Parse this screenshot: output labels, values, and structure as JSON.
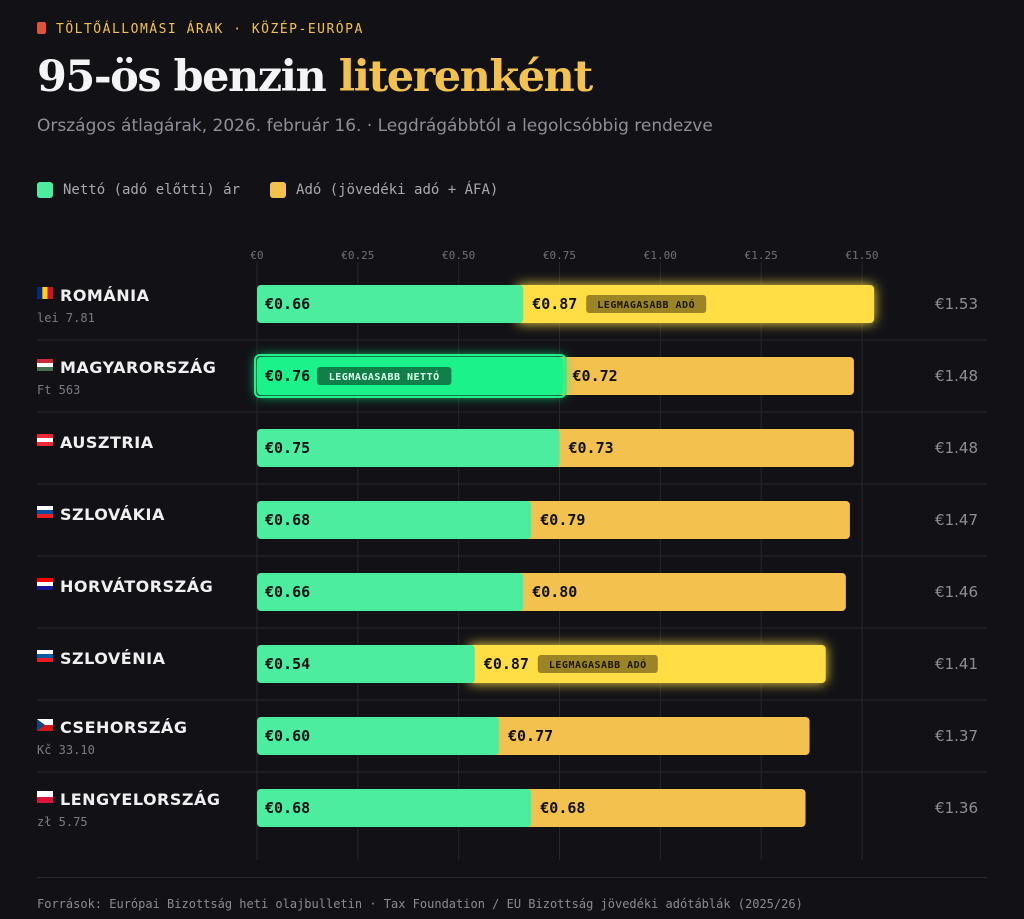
{
  "header": {
    "kicker": "TÖLTŐÁLLOMÁSI ÁRAK · KÖZÉP-EURÓPA",
    "title_main": "95-ös benzin",
    "title_accent": "literenként",
    "subtitle": "Országos átlagárak, 2026. február 16. · Legdrágábbtól a legolcsóbbig rendezve"
  },
  "legend": [
    {
      "label": "Nettó (adó előtti) ár",
      "color": "#4ded9f"
    },
    {
      "label": "Adó (jövedéki adó + ÁFA)",
      "color": "#f2c14e"
    }
  ],
  "colors": {
    "net": "#4ded9f",
    "tax": "#f2c14e",
    "net_highlight": "#1ff28a",
    "tax_highlight": "#ffde45"
  },
  "chart_data": {
    "type": "bar",
    "orientation": "horizontal",
    "stacked": true,
    "xlim": [
      0,
      1.5
    ],
    "tick_labels": [
      "€0",
      "€0.25",
      "€0.50",
      "€0.75",
      "€1.00",
      "€1.25",
      "€1.50"
    ],
    "tick_values": [
      0,
      0.25,
      0.5,
      0.75,
      1.0,
      1.25,
      1.5
    ],
    "grid": true,
    "legend_position": "top-left",
    "rows": [
      {
        "country": "ROMÁNIA",
        "local": "lei 7.81",
        "flag": "romania-flag-icon",
        "net": 0.66,
        "tax": 0.87,
        "total": 1.53,
        "net_label": "€0.66",
        "tax_label": "€0.87",
        "total_label": "€1.53",
        "badge": "LEGMAGASABB ADÓ",
        "badge_on": "tax"
      },
      {
        "country": "MAGYARORSZÁG",
        "local": "Ft 563",
        "flag": "hungary-flag-icon",
        "net": 0.76,
        "tax": 0.72,
        "total": 1.48,
        "net_label": "€0.76",
        "tax_label": "€0.72",
        "total_label": "€1.48",
        "badge": "LEGMAGASABB NETTÓ",
        "badge_on": "net"
      },
      {
        "country": "AUSZTRIA",
        "local": "",
        "flag": "austria-flag-icon",
        "net": 0.75,
        "tax": 0.73,
        "total": 1.48,
        "net_label": "€0.75",
        "tax_label": "€0.73",
        "total_label": "€1.48",
        "badge": "",
        "badge_on": ""
      },
      {
        "country": "SZLOVÁKIA",
        "local": "",
        "flag": "slovakia-flag-icon",
        "net": 0.68,
        "tax": 0.79,
        "total": 1.47,
        "net_label": "€0.68",
        "tax_label": "€0.79",
        "total_label": "€1.47",
        "badge": "",
        "badge_on": ""
      },
      {
        "country": "HORVÁTORSZÁG",
        "local": "",
        "flag": "croatia-flag-icon",
        "net": 0.66,
        "tax": 0.8,
        "total": 1.46,
        "net_label": "€0.66",
        "tax_label": "€0.80",
        "total_label": "€1.46",
        "badge": "",
        "badge_on": ""
      },
      {
        "country": "SZLOVÉNIA",
        "local": "",
        "flag": "slovenia-flag-icon",
        "net": 0.54,
        "tax": 0.87,
        "total": 1.41,
        "net_label": "€0.54",
        "tax_label": "€0.87",
        "total_label": "€1.41",
        "badge": "LEGMAGASABB ADÓ",
        "badge_on": "tax"
      },
      {
        "country": "CSEHORSZÁG",
        "local": "Kč 33.10",
        "flag": "czechia-flag-icon",
        "net": 0.6,
        "tax": 0.77,
        "total": 1.37,
        "net_label": "€0.60",
        "tax_label": "€0.77",
        "total_label": "€1.37",
        "badge": "",
        "badge_on": ""
      },
      {
        "country": "LENGYELORSZÁG",
        "local": "zł 5.75",
        "flag": "poland-flag-icon",
        "net": 0.68,
        "tax": 0.68,
        "total": 1.36,
        "net_label": "€0.68",
        "tax_label": "€0.68",
        "total_label": "€1.36",
        "badge": "",
        "badge_on": ""
      }
    ]
  },
  "footer": {
    "sources": "Források: Európai Bizottság heti olajbulletin · Tax Foundation / EU Bizottság jövedéki adótáblák (2025/26)"
  }
}
